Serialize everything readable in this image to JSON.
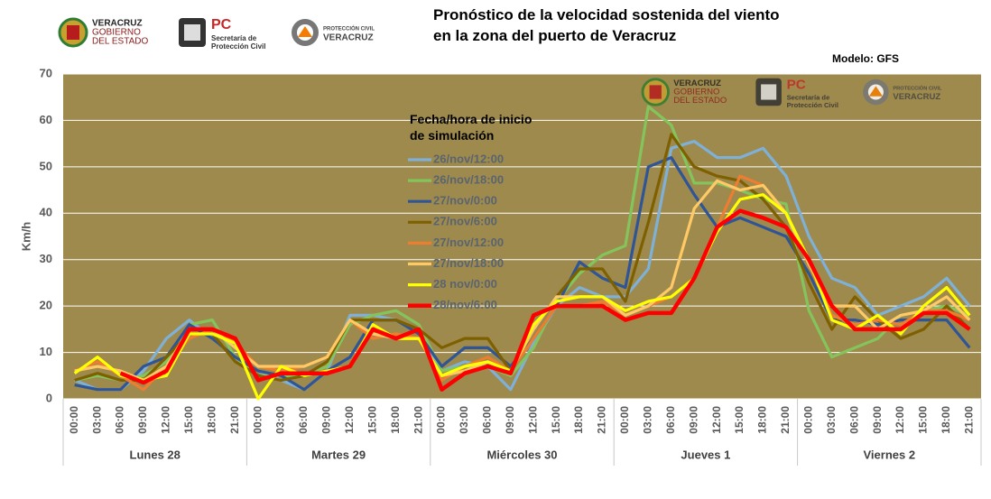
{
  "chart_data": {
    "type": "line",
    "title": [
      "Pronóstico de la velocidad sostenida del viento",
      "en la zona del puerto de Veracruz"
    ],
    "subtitle": "Modelo: GFS",
    "y_label": "Km/h",
    "legend_title": [
      "Fecha/hora de inicio",
      "de simulación"
    ],
    "logos": [
      [
        "VERACRUZ",
        "GOBIERNO",
        "DEL ESTADO"
      ],
      [
        "PC",
        "Secretaría de",
        "Protección Civil"
      ],
      [
        "PROTECCIÓN CIVIL",
        "VERACRUZ"
      ]
    ],
    "day_labels": [
      "Lunes 28",
      "Martes 29",
      "Miércoles 30",
      "Jueves 1",
      "Viernes 2"
    ],
    "categories": [
      "00:00",
      "03:00",
      "06:00",
      "09:00",
      "12:00",
      "15:00",
      "18:00",
      "21:00",
      "00:00",
      "03:00",
      "06:00",
      "09:00",
      "12:00",
      "15:00",
      "18:00",
      "21:00",
      "00:00",
      "03:00",
      "06:00",
      "09:00",
      "12:00",
      "15:00",
      "18:00",
      "21:00",
      "00:00",
      "03:00",
      "06:00",
      "09:00",
      "12:00",
      "15:00",
      "18:00",
      "21:00",
      "00:00",
      "03:00",
      "06:00",
      "09:00",
      "12:00",
      "15:00",
      "18:00",
      "21:00"
    ],
    "ylim": [
      0,
      70
    ],
    "yticks": [
      0,
      10,
      20,
      30,
      40,
      50,
      60,
      70
    ],
    "grid": true,
    "series": [
      {
        "name": "26/nov/12:00",
        "color": "#7fb0d8",
        "values": [
          4,
          2,
          2,
          6,
          13,
          17,
          13,
          9,
          6,
          4,
          2,
          6,
          18,
          18,
          17,
          14,
          6,
          8,
          7,
          2,
          12,
          20,
          24,
          22,
          22,
          28,
          54,
          55.5,
          52,
          52,
          54,
          48,
          35,
          26,
          24,
          18,
          20,
          22,
          26,
          20
        ]
      },
      {
        "name": "26/nov/18:00",
        "color": "#84c45c",
        "values": [
          4,
          5,
          4,
          5,
          8,
          16,
          17,
          9,
          5,
          5,
          5,
          7,
          16,
          18,
          19,
          16,
          6,
          7,
          7,
          5,
          11,
          21,
          27,
          31,
          33,
          63,
          59,
          46.5,
          46.5,
          45,
          43,
          42,
          19,
          9,
          11,
          13,
          18,
          19,
          20,
          18
        ]
      },
      {
        "name": "27/nov/0:00",
        "color": "#2f5597",
        "values": [
          3,
          2,
          2,
          7,
          9,
          16,
          13,
          9,
          6,
          5,
          2,
          6,
          9,
          17,
          17,
          14,
          7,
          11,
          11,
          7,
          13,
          20,
          29.5,
          26,
          24,
          50,
          52,
          44,
          37,
          39,
          37,
          35,
          27,
          17,
          17,
          16,
          17,
          17,
          17,
          11
        ]
      },
      {
        "name": "27/nov/6:00",
        "color": "#7f6000",
        "values": [
          4,
          5.5,
          4,
          4,
          9,
          14,
          14,
          8,
          5,
          4,
          5,
          8,
          17,
          17,
          17,
          15,
          11,
          13,
          13,
          6,
          15,
          22,
          28,
          28,
          21,
          38,
          57,
          50,
          48,
          47,
          43,
          37,
          25,
          15,
          22,
          17,
          13,
          15,
          20,
          15
        ]
      },
      {
        "name": "27/nov/12:00",
        "color": "#ed7d31",
        "values": [
          6,
          8,
          5,
          2,
          7,
          13,
          15,
          12,
          7,
          6,
          7,
          9,
          17,
          13,
          14,
          13,
          4,
          7,
          9,
          6,
          13,
          20,
          20,
          21,
          18,
          20,
          22,
          26,
          37,
          48,
          46,
          40,
          29,
          18,
          16,
          17,
          16,
          19,
          19,
          17
        ]
      },
      {
        "name": "27/nov/18:00",
        "color": "#ffc966",
        "values": [
          6,
          7,
          6,
          4,
          7,
          15,
          15,
          11,
          7,
          7,
          7,
          9,
          17,
          14,
          13,
          13,
          5,
          6,
          8,
          6,
          15,
          22,
          22,
          22,
          18,
          20,
          24,
          41,
          47,
          45,
          46,
          40,
          29,
          20,
          20,
          15,
          18,
          19,
          22,
          17
        ]
      },
      {
        "name": "28 nov/0:00",
        "color": "#ffff00",
        "values": [
          5.5,
          9,
          5,
          4,
          5,
          14,
          14,
          12,
          0,
          7,
          5,
          6,
          7,
          16,
          13,
          13,
          5,
          7,
          8,
          6,
          16,
          21,
          22,
          22,
          19,
          21,
          22,
          26,
          36,
          43,
          44,
          40,
          30,
          17,
          15,
          18,
          14,
          20,
          24,
          18
        ]
      },
      {
        "name": "28/nov/6:00",
        "color": "#ff0000",
        "values": [
          null,
          null,
          5.5,
          3.5,
          6,
          15,
          15,
          13,
          4,
          5.5,
          5.5,
          5.5,
          7,
          15,
          13,
          15,
          2,
          5.5,
          7,
          5.5,
          18,
          20,
          20,
          20,
          17,
          18.5,
          18.5,
          26,
          37,
          40.5,
          39,
          37,
          30,
          20,
          15,
          15,
          15,
          18.5,
          18.5,
          15
        ]
      }
    ],
    "plot_background": "#9e8a4c"
  }
}
